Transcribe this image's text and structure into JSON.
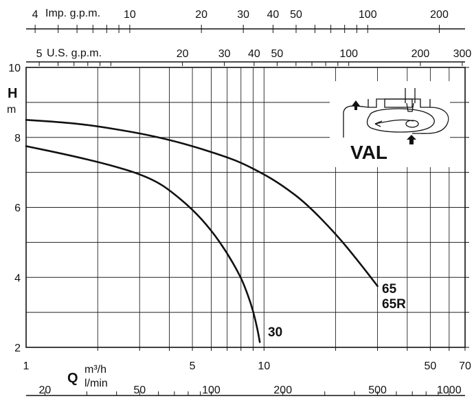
{
  "chart_data": {
    "type": "line",
    "title": "",
    "x_scale": "log",
    "xlim": [
      1,
      70
    ],
    "ylim": [
      2,
      10
    ],
    "grid": true,
    "y_axis": {
      "title": "H",
      "unit": "m",
      "ticks": [
        2,
        4,
        6,
        8,
        10
      ]
    },
    "x_axis_main": {
      "title": "Q",
      "unit": "m³/h",
      "ticks": [
        1,
        5,
        10,
        50,
        70
      ]
    },
    "x_axis_lmin": {
      "unit": "l/min",
      "ticks": [
        20,
        50,
        100,
        200,
        500,
        1000
      ]
    },
    "x_axis_usgpm": {
      "title": "U.S. g.p.m.",
      "ticks": [
        5,
        20,
        30,
        40,
        50,
        100,
        200,
        300
      ]
    },
    "x_axis_impgpm": {
      "title": "Imp. g.p.m.",
      "ticks": [
        4,
        10,
        20,
        30,
        40,
        50,
        100,
        200
      ]
    },
    "series": [
      {
        "name": "30",
        "x": [
          1,
          1.5,
          2,
          2.5,
          3,
          3.5,
          4,
          5,
          6,
          7,
          8,
          8.5,
          9,
          9.4,
          9.6
        ],
        "y": [
          7.75,
          7.5,
          7.3,
          7.12,
          6.95,
          6.75,
          6.5,
          5.95,
          5.35,
          4.7,
          4.0,
          3.55,
          3.05,
          2.5,
          2.15
        ]
      },
      {
        "name": "65\n65R",
        "x": [
          1,
          1.5,
          2,
          3,
          4,
          5,
          6,
          7,
          8,
          10,
          12,
          15,
          20,
          25,
          30
        ],
        "y": [
          8.5,
          8.42,
          8.32,
          8.12,
          7.93,
          7.75,
          7.58,
          7.43,
          7.28,
          6.95,
          6.62,
          6.12,
          5.25,
          4.45,
          3.75
        ]
      }
    ]
  },
  "labels": {
    "curve_30": "30",
    "curve_65": "65",
    "curve_65r": "65R",
    "model": "VAL"
  }
}
